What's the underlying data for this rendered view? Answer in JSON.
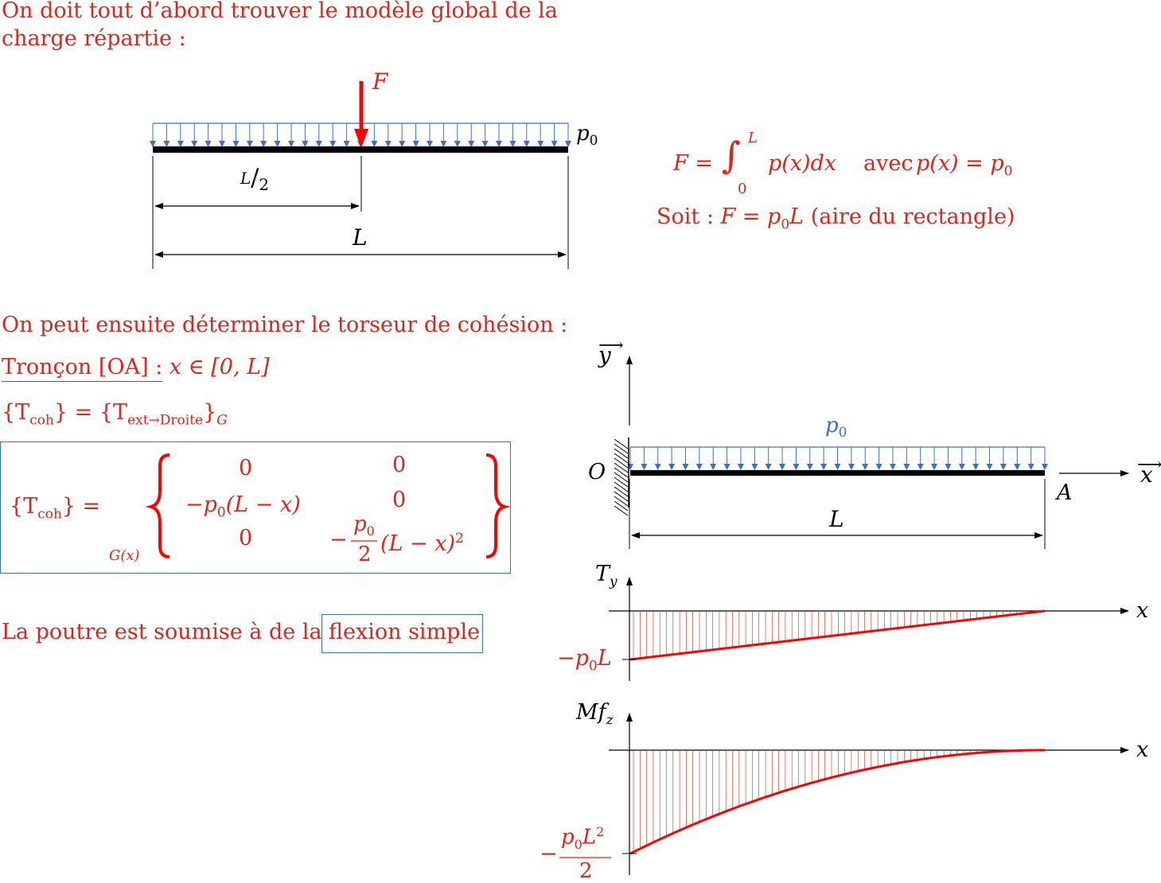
{
  "intro": {
    "line1": "On doit tout d’abord trouver le modèle global de la",
    "line2": "charge répartie :"
  },
  "fig1": {
    "force_label": "F",
    "load_label": "p",
    "load_sub": "0",
    "half_num": "L",
    "half_slash": "/",
    "half_den": "2",
    "length_label": "L"
  },
  "formula": {
    "F": "F =",
    "int_upper": "L",
    "int_lower": "0",
    "integrand": "p(x)dx",
    "avec": "avec",
    "px": "p(x) = p",
    "px_sub": "0",
    "soit": "Soit :",
    "result": "F = p",
    "result_sub": "0",
    "result_end": "L",
    "note": "(aire du rectangle)"
  },
  "torseur": {
    "intro": "On peut ensuite déterminer le torseur de cohésion :",
    "troncon_label": "Tronçon [OA] :",
    "troncon_domain": "x ∈ [0, L]",
    "def_lhs": "{T",
    "def_lhs_sub": "coh",
    "def_mid": "} = {T",
    "def_rhs_sub": "ext→Droite",
    "def_end": "}",
    "def_G": "G",
    "matrix_lhs": "{T",
    "matrix_lhs_sub": "coh",
    "matrix_lhs_end": "} =",
    "matrix_point": "G(x)",
    "m11": "0",
    "m12": "0",
    "m21": "−p",
    "m21_sub": "0",
    "m21_end": "(L − x)",
    "m22": "0",
    "m31": "0",
    "m32_minus": "−",
    "m32_num": "p",
    "m32_num_sub": "0",
    "m32_den": "2",
    "m32_end": "(L − x)",
    "m32_exp": "2"
  },
  "conclusion": {
    "text": "La poutre est soumise à de la",
    "boxed": "flexion simple"
  },
  "fig2": {
    "y_axis": "y",
    "x_axis": "x",
    "load_label": "p",
    "load_sub": "0",
    "origin": "O",
    "end": "A",
    "length": "L"
  },
  "ty_diagram": {
    "axis_label": "T",
    "axis_sub": "y",
    "x_label": "x",
    "value": "−p",
    "value_sub": "0",
    "value_end": "L"
  },
  "mf_diagram": {
    "axis_label": "Mf",
    "axis_sub": "z",
    "x_label": "x",
    "value_minus": "−",
    "value_num": "p",
    "value_num_sub": "0",
    "value_num_end": "L",
    "value_num_exp": "2",
    "value_den": "2"
  },
  "colors": {
    "text": "#e2231a",
    "load": "#3a6fd1",
    "beam": "#000000"
  }
}
